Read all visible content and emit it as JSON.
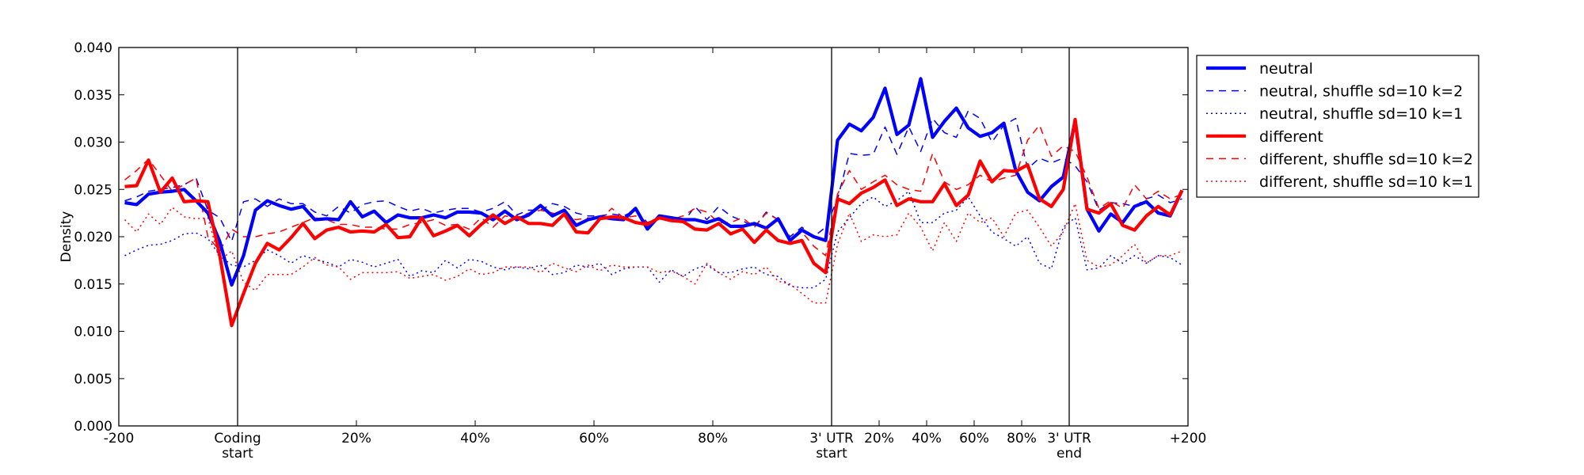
{
  "chart_data": {
    "type": "line",
    "title": "",
    "xlabel": "",
    "ylabel": "Density",
    "ylim": [
      0.0,
      0.04
    ],
    "xlim": [
      0,
      90
    ],
    "grid": false,
    "legend_position": "outside-top-right",
    "y_ticks": [
      {
        "value": 0.0,
        "label": "0.000"
      },
      {
        "value": 0.005,
        "label": "0.005"
      },
      {
        "value": 0.01,
        "label": "0.010"
      },
      {
        "value": 0.015,
        "label": "0.015"
      },
      {
        "value": 0.02,
        "label": "0.020"
      },
      {
        "value": 0.025,
        "label": "0.025"
      },
      {
        "value": 0.03,
        "label": "0.030"
      },
      {
        "value": 0.035,
        "label": "0.035"
      },
      {
        "value": 0.04,
        "label": "0.040"
      }
    ],
    "x_ticks": [
      {
        "value": 0,
        "label": [
          "-200"
        ]
      },
      {
        "value": 10,
        "label": [
          "Coding",
          "start"
        ]
      },
      {
        "value": 20,
        "label": [
          "20%"
        ]
      },
      {
        "value": 30,
        "label": [
          "40%"
        ]
      },
      {
        "value": 40,
        "label": [
          "60%"
        ]
      },
      {
        "value": 50,
        "label": [
          "80%"
        ]
      },
      {
        "value": 60,
        "label": [
          "3' UTR",
          "start"
        ]
      },
      {
        "value": 64,
        "label": [
          "20%"
        ]
      },
      {
        "value": 68,
        "label": [
          "40%"
        ]
      },
      {
        "value": 72,
        "label": [
          "60%"
        ]
      },
      {
        "value": 76,
        "label": [
          "80%"
        ]
      },
      {
        "value": 80,
        "label": [
          "3' UTR",
          "end"
        ]
      },
      {
        "value": 90,
        "label": [
          "+200"
        ]
      }
    ],
    "vertical_lines": [
      10,
      60,
      80
    ],
    "x_start": 0.5,
    "x_step": 1,
    "series": [
      {
        "name": "neutral",
        "color": "#0000ff",
        "style": "solid",
        "width": "thick",
        "values": [
          0.0236,
          0.0234,
          0.0245,
          0.0247,
          0.0248,
          0.025,
          0.0238,
          0.0225,
          0.0195,
          0.0149,
          0.018,
          0.0228,
          0.0238,
          0.0233,
          0.0229,
          0.0232,
          0.0218,
          0.0219,
          0.0218,
          0.0237,
          0.0221,
          0.0227,
          0.0215,
          0.0223,
          0.022,
          0.022,
          0.0223,
          0.022,
          0.0226,
          0.0226,
          0.0225,
          0.0218,
          0.0227,
          0.0218,
          0.0223,
          0.0233,
          0.0222,
          0.0228,
          0.0212,
          0.0218,
          0.0221,
          0.0219,
          0.0218,
          0.023,
          0.0208,
          0.0222,
          0.022,
          0.0218,
          0.0218,
          0.0215,
          0.0219,
          0.0211,
          0.0211,
          0.0214,
          0.0209,
          0.0219,
          0.0196,
          0.0207,
          0.02,
          0.0196,
          0.0302,
          0.0319,
          0.0312,
          0.0326,
          0.0357,
          0.0308,
          0.0318,
          0.0367,
          0.0305,
          0.0322,
          0.0336,
          0.0315,
          0.0306,
          0.031,
          0.032,
          0.027,
          0.0247,
          0.0238,
          0.0253,
          0.0263,
          0.0322,
          0.0229,
          0.0206,
          0.0224,
          0.0215,
          0.0232,
          0.0237,
          0.0225,
          0.0222,
          0.0249
        ]
      },
      {
        "name": "neutral, shuffle sd=10 k=2",
        "color": "#0000ff",
        "style": "dashed",
        "width": "thin",
        "values": [
          0.0238,
          0.0242,
          0.0248,
          0.025,
          0.0252,
          0.0255,
          0.0262,
          0.0228,
          0.022,
          0.0195,
          0.0237,
          0.024,
          0.0232,
          0.024,
          0.0235,
          0.0235,
          0.0226,
          0.0222,
          0.0232,
          0.0225,
          0.0234,
          0.0237,
          0.0238,
          0.0232,
          0.0227,
          0.023,
          0.0225,
          0.0228,
          0.023,
          0.023,
          0.0226,
          0.023,
          0.0237,
          0.0223,
          0.0228,
          0.0228,
          0.0235,
          0.0232,
          0.0225,
          0.0222,
          0.0222,
          0.0224,
          0.0222,
          0.0228,
          0.0215,
          0.022,
          0.022,
          0.0215,
          0.0232,
          0.0218,
          0.0232,
          0.0222,
          0.0217,
          0.021,
          0.0226,
          0.0218,
          0.02,
          0.021,
          0.02,
          0.021,
          0.024,
          0.0288,
          0.0286,
          0.0287,
          0.0316,
          0.0287,
          0.0316,
          0.029,
          0.0325,
          0.031,
          0.0305,
          0.0333,
          0.0325,
          0.03,
          0.0318,
          0.0325,
          0.0272,
          0.0283,
          0.0278,
          0.0283,
          0.0275,
          0.0258,
          0.0228,
          0.0236,
          0.0235,
          0.0232,
          0.024,
          0.0244,
          0.0236,
          0.024
        ]
      },
      {
        "name": "neutral, shuffle sd=10 k=1",
        "color": "#0000ff",
        "style": "dotted",
        "width": "thin",
        "values": [
          0.018,
          0.0186,
          0.0191,
          0.0192,
          0.0196,
          0.0203,
          0.0204,
          0.0198,
          0.018,
          0.017,
          0.0168,
          0.0175,
          0.0186,
          0.018,
          0.0172,
          0.018,
          0.0176,
          0.0173,
          0.0168,
          0.0176,
          0.0173,
          0.0168,
          0.0172,
          0.0176,
          0.0158,
          0.0164,
          0.0162,
          0.0175,
          0.0167,
          0.0176,
          0.0174,
          0.0168,
          0.0165,
          0.0168,
          0.0166,
          0.017,
          0.016,
          0.0162,
          0.017,
          0.0168,
          0.0172,
          0.016,
          0.0166,
          0.0168,
          0.0168,
          0.0152,
          0.0165,
          0.0158,
          0.0166,
          0.017,
          0.0162,
          0.0162,
          0.0166,
          0.0168,
          0.016,
          0.0158,
          0.0148,
          0.0146,
          0.0146,
          0.0155,
          0.0205,
          0.022,
          0.0235,
          0.0242,
          0.0232,
          0.0238,
          0.0248,
          0.0215,
          0.0215,
          0.0225,
          0.0228,
          0.0242,
          0.0222,
          0.0205,
          0.0198,
          0.019,
          0.02,
          0.0172,
          0.0166,
          0.021,
          0.022,
          0.0165,
          0.0167,
          0.018,
          0.0172,
          0.018,
          0.0172,
          0.018,
          0.0178,
          0.017
        ]
      },
      {
        "name": "different",
        "color": "#ff0000",
        "style": "solid",
        "width": "thick",
        "values": [
          0.0253,
          0.0254,
          0.0281,
          0.0247,
          0.0262,
          0.0237,
          0.0238,
          0.0237,
          0.018,
          0.0106,
          0.014,
          0.0172,
          0.0193,
          0.0186,
          0.0199,
          0.0214,
          0.0198,
          0.0207,
          0.021,
          0.0205,
          0.0206,
          0.0205,
          0.0213,
          0.0199,
          0.02,
          0.022,
          0.0201,
          0.0206,
          0.0212,
          0.0201,
          0.0213,
          0.0223,
          0.0214,
          0.0221,
          0.0214,
          0.0214,
          0.0212,
          0.0224,
          0.0205,
          0.0204,
          0.0219,
          0.0221,
          0.022,
          0.0215,
          0.0213,
          0.022,
          0.0217,
          0.0216,
          0.0208,
          0.0207,
          0.0214,
          0.0203,
          0.0208,
          0.0194,
          0.0207,
          0.0196,
          0.0193,
          0.0196,
          0.0172,
          0.0162,
          0.024,
          0.0235,
          0.0246,
          0.0252,
          0.026,
          0.0233,
          0.024,
          0.0237,
          0.0237,
          0.0256,
          0.0233,
          0.0244,
          0.028,
          0.0258,
          0.027,
          0.0269,
          0.0276,
          0.024,
          0.0232,
          0.025,
          0.0324,
          0.0229,
          0.0225,
          0.0235,
          0.0212,
          0.0207,
          0.0222,
          0.0232,
          0.0223,
          0.0249
        ]
      },
      {
        "name": "different, shuffle sd=10 k=2",
        "color": "#ff0000",
        "style": "dashed",
        "width": "thin",
        "values": [
          0.026,
          0.027,
          0.0282,
          0.0265,
          0.0248,
          0.0255,
          0.0262,
          0.02,
          0.0185,
          0.0208,
          0.02,
          0.02,
          0.0203,
          0.0205,
          0.021,
          0.0215,
          0.022,
          0.0218,
          0.0213,
          0.0213,
          0.021,
          0.021,
          0.0208,
          0.0208,
          0.0213,
          0.0215,
          0.0218,
          0.0212,
          0.0213,
          0.0208,
          0.022,
          0.021,
          0.0222,
          0.022,
          0.0225,
          0.0228,
          0.0225,
          0.0222,
          0.0218,
          0.022,
          0.0218,
          0.023,
          0.022,
          0.0222,
          0.0215,
          0.022,
          0.0218,
          0.0222,
          0.023,
          0.0226,
          0.0215,
          0.0215,
          0.022,
          0.021,
          0.0225,
          0.0218,
          0.0195,
          0.0205,
          0.019,
          0.018,
          0.0245,
          0.027,
          0.025,
          0.0258,
          0.0265,
          0.0255,
          0.025,
          0.0248,
          0.0288,
          0.0258,
          0.025,
          0.0255,
          0.0265,
          0.0258,
          0.0262,
          0.0265,
          0.0302,
          0.0318,
          0.0285,
          0.0296,
          0.029,
          0.0263,
          0.023,
          0.0238,
          0.023,
          0.0255,
          0.024,
          0.0248,
          0.024,
          0.0245
        ]
      },
      {
        "name": "different, shuffle sd=10 k=1",
        "color": "#ff0000",
        "style": "dotted",
        "width": "thin",
        "values": [
          0.0218,
          0.0205,
          0.0224,
          0.0213,
          0.0231,
          0.0221,
          0.0219,
          0.022,
          0.0175,
          0.0185,
          0.0152,
          0.0143,
          0.016,
          0.016,
          0.016,
          0.0168,
          0.0178,
          0.017,
          0.0168,
          0.0155,
          0.0162,
          0.0162,
          0.0162,
          0.0163,
          0.0156,
          0.0158,
          0.016,
          0.0154,
          0.0158,
          0.0166,
          0.016,
          0.0162,
          0.0168,
          0.0168,
          0.0168,
          0.0162,
          0.0172,
          0.0167,
          0.0163,
          0.017,
          0.0164,
          0.017,
          0.0168,
          0.0168,
          0.0168,
          0.0162,
          0.0164,
          0.0158,
          0.015,
          0.0172,
          0.0162,
          0.0155,
          0.0163,
          0.016,
          0.0168,
          0.0153,
          0.015,
          0.014,
          0.013,
          0.013,
          0.0192,
          0.0225,
          0.0195,
          0.0202,
          0.02,
          0.0202,
          0.0225,
          0.021,
          0.0185,
          0.0215,
          0.0195,
          0.0225,
          0.0215,
          0.022,
          0.02,
          0.0225,
          0.0228,
          0.021,
          0.019,
          0.0205,
          0.0235,
          0.0175,
          0.0168,
          0.017,
          0.018,
          0.0192,
          0.0172,
          0.018,
          0.018,
          0.0185
        ]
      }
    ]
  }
}
